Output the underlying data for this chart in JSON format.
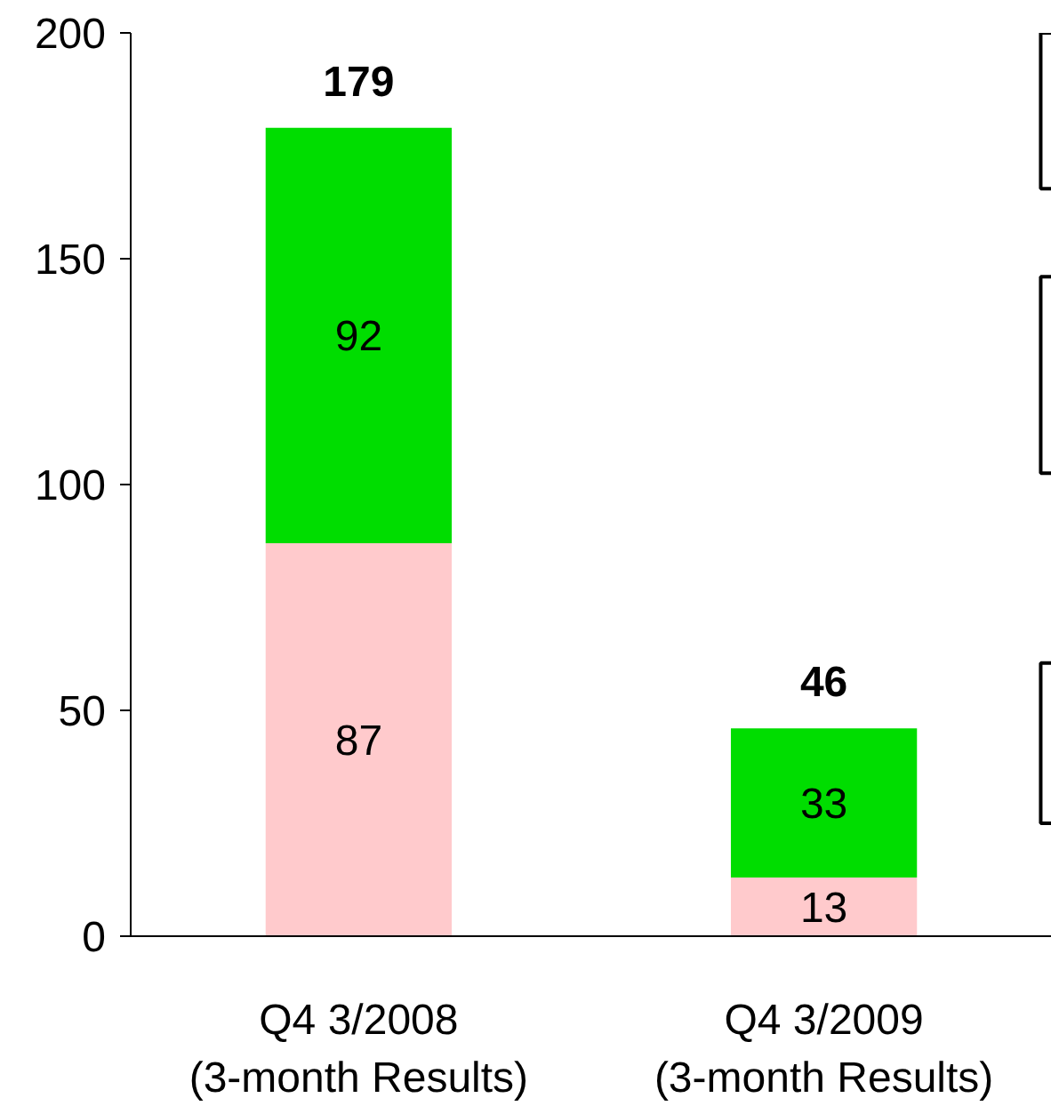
{
  "chart_data": {
    "type": "bar",
    "stacked": true,
    "data_labels": true,
    "categories": [
      "Q4 3/2008\n(3-month Results)",
      "Q4 3/2009\n(3-month Results)"
    ],
    "series": [
      {
        "color": "#ffcacc",
        "values": [
          87,
          13
        ]
      },
      {
        "color": "#00dd00",
        "values": [
          92,
          33
        ]
      }
    ],
    "totals": [
      "179",
      "46"
    ],
    "ylim": [
      0,
      200
    ],
    "yticks": [
      0,
      50,
      100,
      150,
      200
    ]
  }
}
